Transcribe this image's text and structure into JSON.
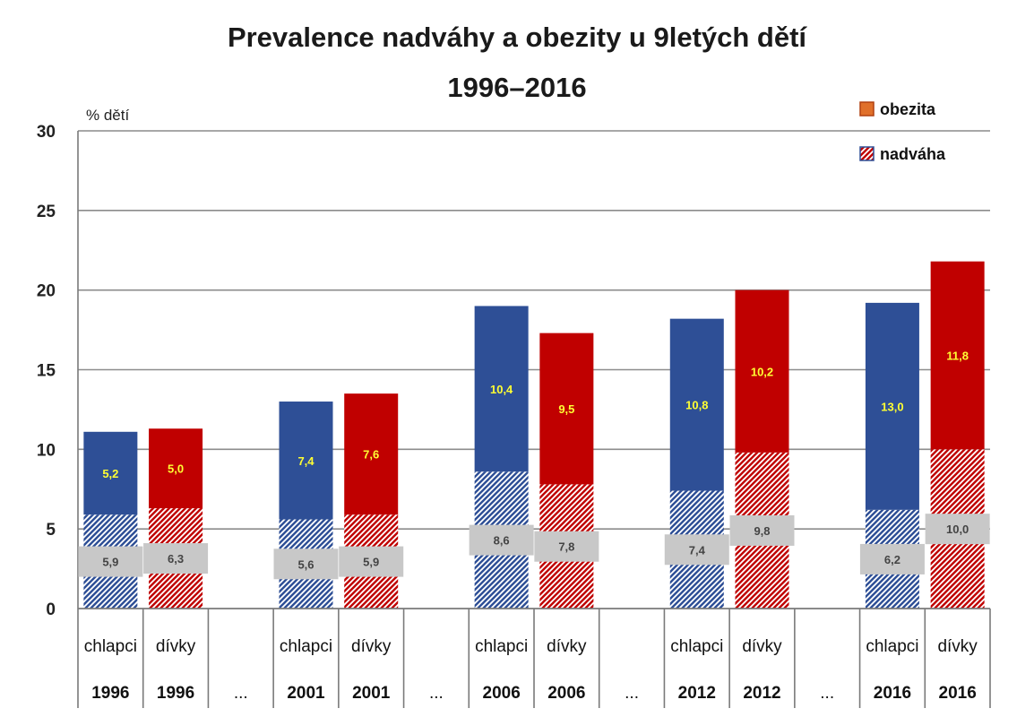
{
  "chart_data": {
    "type": "bar",
    "stacked": true,
    "title": "Prevalence nadváhy a obezity u 9letých dětí",
    "subtitle": "1996–2016",
    "ylabel": "% dětí",
    "ylim": [
      0,
      30
    ],
    "yticks": [
      0,
      5,
      10,
      15,
      20,
      25,
      30
    ],
    "grid": true,
    "legend_position": "top-right",
    "legend": [
      {
        "name": "obezita",
        "color": "#e0702a"
      },
      {
        "name": "nadváha",
        "color": "#2e4f96"
      }
    ],
    "colors": {
      "boys": "#2e4f96",
      "girls": "#c00000",
      "label_box": "#c8c8c8",
      "top_label": "#ffff33"
    },
    "categories": [
      {
        "group": "chlapci",
        "year": "1996",
        "nadvaha": 5.9,
        "obezita": 5.2,
        "nadvaha_label": "5,9",
        "obezita_label": "5,2"
      },
      {
        "group": "dívky",
        "year": "1996",
        "nadvaha": 6.3,
        "obezita": 5.0,
        "nadvaha_label": "6,3",
        "obezita_label": "5,0"
      },
      {
        "group": "",
        "year": "...",
        "spacer": true
      },
      {
        "group": "chlapci",
        "year": "2001",
        "nadvaha": 5.6,
        "obezita": 7.4,
        "nadvaha_label": "5,6",
        "obezita_label": "7,4"
      },
      {
        "group": "dívky",
        "year": "2001",
        "nadvaha": 5.9,
        "obezita": 7.6,
        "nadvaha_label": "5,9",
        "obezita_label": "7,6"
      },
      {
        "group": "",
        "year": "...",
        "spacer": true
      },
      {
        "group": "chlapci",
        "year": "2006",
        "nadvaha": 8.6,
        "obezita": 10.4,
        "nadvaha_label": "8,6",
        "obezita_label": "10,4"
      },
      {
        "group": "dívky",
        "year": "2006",
        "nadvaha": 7.8,
        "obezita": 9.5,
        "nadvaha_label": "7,8",
        "obezita_label": "9,5"
      },
      {
        "group": "",
        "year": "...",
        "spacer": true
      },
      {
        "group": "chlapci",
        "year": "2012",
        "nadvaha": 7.4,
        "obezita": 10.8,
        "nadvaha_label": "7,4",
        "obezita_label": "10,8"
      },
      {
        "group": "dívky",
        "year": "2012",
        "nadvaha": 9.8,
        "obezita": 10.2,
        "nadvaha_label": "9,8",
        "obezita_label": "10,2"
      },
      {
        "group": "",
        "year": "...",
        "spacer": true
      },
      {
        "group": "chlapci",
        "year": "2016",
        "nadvaha": 6.2,
        "obezita": 13.0,
        "nadvaha_label": "6,2",
        "obezita_label": "13,0"
      },
      {
        "group": "dívky",
        "year": "2016",
        "nadvaha": 10.0,
        "obezita": 11.8,
        "nadvaha_label": "10,0",
        "obezita_label": "11,8"
      }
    ]
  }
}
